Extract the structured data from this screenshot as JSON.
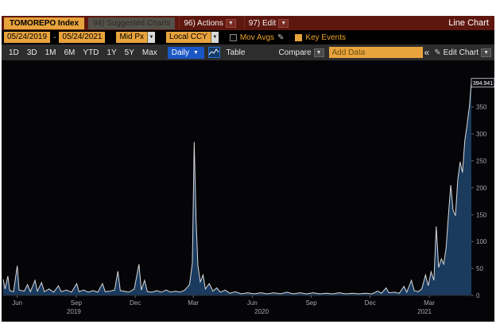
{
  "icons": {
    "caret_down": "▼",
    "pencil": "✎",
    "collapse": "«",
    "dash": "-"
  },
  "title_bar": {
    "security": "TOMOREPO Index",
    "suggested_charts": "94) Suggested Charts",
    "actions": "96) Actions",
    "edit": "97) Edit",
    "chart_type": "Line Chart"
  },
  "settings_bar": {
    "start_date": "05/24/2019",
    "end_date": "05/24/2021",
    "price_source": "Mid Px",
    "currency": "Local CCY",
    "mov_avgs": "Mov Avgs",
    "key_events": "Key Events"
  },
  "toolbar": {
    "periods": [
      "1D",
      "3D",
      "1M",
      "6M",
      "YTD",
      "1Y",
      "5Y",
      "Max"
    ],
    "frequency": "Daily",
    "table": "Table",
    "compare": "Compare",
    "add_data_placeholder": "Add Data",
    "edit_chart": "Edit Chart"
  },
  "chart": {
    "last_price": "394.941",
    "colors": {
      "line": "#d9d9d9",
      "fill": "#1a3a5e",
      "plot_bg": "#050508",
      "axis_text": "#a8a8a8",
      "tick_mark": "#666666",
      "baseline": "#2f2f2f",
      "badge_bg": "#0b0b0f",
      "badge_border": "#e0e0e0",
      "badge_text": "#ffffff"
    }
  },
  "chart_data": {
    "type": "area",
    "title": "TOMOREPO Index — Line Chart",
    "x_axis": {
      "start": "05/24/2019",
      "end": "05/24/2021",
      "month_ticks": [
        {
          "t": 0.03,
          "label": "Jun"
        },
        {
          "t": 0.156,
          "label": "Sep"
        },
        {
          "t": 0.282,
          "label": "Dec"
        },
        {
          "t": 0.406,
          "label": "Mar"
        },
        {
          "t": 0.532,
          "label": "Jun"
        },
        {
          "t": 0.658,
          "label": "Sep"
        },
        {
          "t": 0.784,
          "label": "Dec"
        },
        {
          "t": 0.91,
          "label": "Mar"
        }
      ],
      "year_ticks": [
        {
          "t": 0.151,
          "label": "2019"
        },
        {
          "t": 0.552,
          "label": "2020"
        },
        {
          "t": 0.9,
          "label": "2021"
        }
      ]
    },
    "y_axis": {
      "min": 0,
      "max": 410,
      "ticks": [
        0,
        50,
        100,
        150,
        200,
        250,
        300,
        350
      ],
      "grid": false,
      "side": "right"
    },
    "last_value": 394.941,
    "points": [
      [
        0.0,
        30
      ],
      [
        0.004,
        12
      ],
      [
        0.01,
        36
      ],
      [
        0.014,
        9
      ],
      [
        0.022,
        7
      ],
      [
        0.03,
        55
      ],
      [
        0.034,
        10
      ],
      [
        0.045,
        8
      ],
      [
        0.052,
        20
      ],
      [
        0.058,
        7
      ],
      [
        0.068,
        28
      ],
      [
        0.073,
        8
      ],
      [
        0.082,
        24
      ],
      [
        0.088,
        7
      ],
      [
        0.098,
        12
      ],
      [
        0.108,
        6
      ],
      [
        0.118,
        18
      ],
      [
        0.124,
        7
      ],
      [
        0.135,
        10
      ],
      [
        0.146,
        6
      ],
      [
        0.157,
        22
      ],
      [
        0.162,
        7
      ],
      [
        0.172,
        10
      ],
      [
        0.182,
        6
      ],
      [
        0.192,
        9
      ],
      [
        0.202,
        6
      ],
      [
        0.212,
        22
      ],
      [
        0.218,
        7
      ],
      [
        0.228,
        8
      ],
      [
        0.238,
        10
      ],
      [
        0.245,
        45
      ],
      [
        0.25,
        9
      ],
      [
        0.258,
        8
      ],
      [
        0.268,
        6
      ],
      [
        0.28,
        12
      ],
      [
        0.29,
        58
      ],
      [
        0.295,
        10
      ],
      [
        0.302,
        28
      ],
      [
        0.308,
        7
      ],
      [
        0.318,
        6
      ],
      [
        0.328,
        9
      ],
      [
        0.338,
        6
      ],
      [
        0.348,
        10
      ],
      [
        0.358,
        6
      ],
      [
        0.368,
        8
      ],
      [
        0.378,
        6
      ],
      [
        0.388,
        10
      ],
      [
        0.398,
        20
      ],
      [
        0.404,
        60
      ],
      [
        0.408,
        285
      ],
      [
        0.412,
        140
      ],
      [
        0.416,
        55
      ],
      [
        0.421,
        25
      ],
      [
        0.427,
        38
      ],
      [
        0.432,
        12
      ],
      [
        0.44,
        22
      ],
      [
        0.448,
        8
      ],
      [
        0.456,
        14
      ],
      [
        0.464,
        6
      ],
      [
        0.474,
        10
      ],
      [
        0.484,
        4
      ],
      [
        0.496,
        7
      ],
      [
        0.508,
        3
      ],
      [
        0.522,
        5
      ],
      [
        0.536,
        3
      ],
      [
        0.55,
        5
      ],
      [
        0.564,
        3
      ],
      [
        0.578,
        5
      ],
      [
        0.592,
        3
      ],
      [
        0.606,
        6
      ],
      [
        0.62,
        3
      ],
      [
        0.634,
        5
      ],
      [
        0.648,
        3
      ],
      [
        0.662,
        5
      ],
      [
        0.676,
        3
      ],
      [
        0.69,
        4
      ],
      [
        0.704,
        3
      ],
      [
        0.718,
        5
      ],
      [
        0.732,
        3
      ],
      [
        0.746,
        4
      ],
      [
        0.76,
        3
      ],
      [
        0.774,
        4
      ],
      [
        0.788,
        3
      ],
      [
        0.8,
        8
      ],
      [
        0.808,
        4
      ],
      [
        0.818,
        14
      ],
      [
        0.824,
        5
      ],
      [
        0.836,
        6
      ],
      [
        0.846,
        4
      ],
      [
        0.856,
        17
      ],
      [
        0.862,
        6
      ],
      [
        0.872,
        28
      ],
      [
        0.878,
        9
      ],
      [
        0.886,
        7
      ],
      [
        0.894,
        12
      ],
      [
        0.902,
        38
      ],
      [
        0.908,
        18
      ],
      [
        0.914,
        44
      ],
      [
        0.92,
        28
      ],
      [
        0.925,
        128
      ],
      [
        0.93,
        52
      ],
      [
        0.936,
        68
      ],
      [
        0.941,
        58
      ],
      [
        0.946,
        88
      ],
      [
        0.951,
        148
      ],
      [
        0.956,
        205
      ],
      [
        0.961,
        158
      ],
      [
        0.966,
        148
      ],
      [
        0.971,
        215
      ],
      [
        0.976,
        248
      ],
      [
        0.981,
        228
      ],
      [
        0.986,
        288
      ],
      [
        0.991,
        318
      ],
      [
        0.996,
        352
      ],
      [
        1.0,
        394.941
      ]
    ]
  }
}
